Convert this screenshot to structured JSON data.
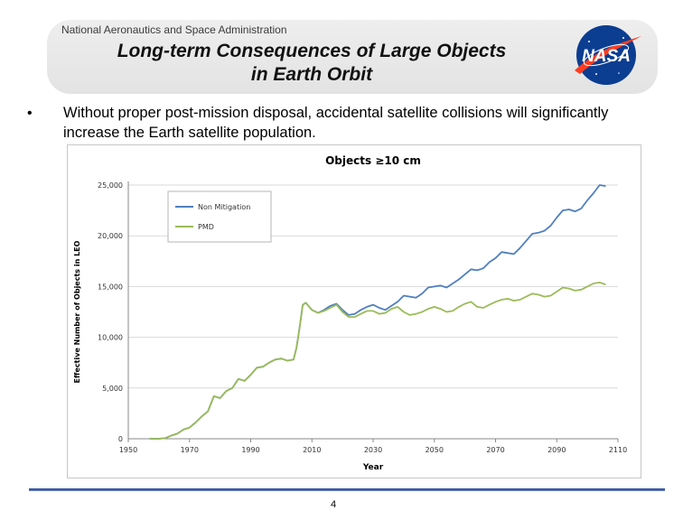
{
  "header": {
    "org_name": "National Aeronautics and Space Administration",
    "title_line1": "Long-term Consequences of Large Objects",
    "title_line2": "in Earth Orbit",
    "logo_text": "NASA"
  },
  "bullet": {
    "marker": "•",
    "text": "Without proper post-mission disposal, accidental satellite collisions will significantly increase the Earth satellite population."
  },
  "footer": {
    "page_number": "4"
  },
  "colors": {
    "non_mitigation": "#4f7fbf",
    "pmd": "#9bbb59",
    "nasa_blue": "#0b3d91",
    "nasa_red": "#fc3d21"
  },
  "chart_data": {
    "type": "line",
    "title": "Objects ≥10 cm",
    "xlabel": "Year",
    "ylabel": "Effective Number of Objects in LEO",
    "xlim": [
      1950,
      2110
    ],
    "ylim": [
      0,
      25000
    ],
    "xticks": [
      1950,
      1970,
      1990,
      2010,
      2030,
      2050,
      2070,
      2090,
      2110
    ],
    "yticks": [
      0,
      5000,
      10000,
      15000,
      20000,
      25000
    ],
    "ytick_labels": [
      "0",
      "5,000",
      "10,000",
      "15,000",
      "20,000",
      "25,000"
    ],
    "legend_position": "top-left",
    "series": [
      {
        "name": "Non Mitigation",
        "x": [
          1957,
          1960,
          1962,
          1964,
          1966,
          1968,
          1970,
          1972,
          1974,
          1976,
          1978,
          1980,
          1982,
          1984,
          1986,
          1988,
          1990,
          1992,
          1994,
          1996,
          1998,
          2000,
          2002,
          2004,
          2005,
          2006,
          2007,
          2008,
          2010,
          2012,
          2014,
          2016,
          2018,
          2020,
          2022,
          2024,
          2026,
          2028,
          2030,
          2032,
          2034,
          2036,
          2038,
          2040,
          2042,
          2044,
          2046,
          2048,
          2050,
          2052,
          2054,
          2056,
          2058,
          2060,
          2062,
          2064,
          2066,
          2068,
          2070,
          2072,
          2074,
          2076,
          2078,
          2080,
          2082,
          2084,
          2086,
          2088,
          2090,
          2092,
          2094,
          2096,
          2098,
          2100,
          2102,
          2104,
          2106
        ],
        "values": [
          0,
          0,
          50,
          300,
          500,
          900,
          1100,
          1600,
          2200,
          2700,
          4200,
          4000,
          4700,
          5000,
          5900,
          5700,
          6300,
          7000,
          7100,
          7500,
          7800,
          7900,
          7700,
          7800,
          9000,
          11000,
          13200,
          13400,
          12700,
          12400,
          12700,
          13100,
          13300,
          12700,
          12200,
          12300,
          12700,
          13000,
          13200,
          12900,
          12700,
          13100,
          13500,
          14100,
          14000,
          13900,
          14300,
          14900,
          15000,
          15100,
          14900,
          15300,
          15700,
          16200,
          16700,
          16600,
          16800,
          17400,
          17800,
          18400,
          18300,
          18200,
          18800,
          19500,
          20200,
          20300,
          20500,
          21000,
          21800,
          22500,
          22600,
          22400,
          22700,
          23500,
          24200,
          25000,
          24900
        ]
      },
      {
        "name": "PMD",
        "x": [
          1957,
          1960,
          1962,
          1964,
          1966,
          1968,
          1970,
          1972,
          1974,
          1976,
          1978,
          1980,
          1982,
          1984,
          1986,
          1988,
          1990,
          1992,
          1994,
          1996,
          1998,
          2000,
          2002,
          2004,
          2005,
          2006,
          2007,
          2008,
          2010,
          2012,
          2014,
          2016,
          2018,
          2020,
          2022,
          2024,
          2026,
          2028,
          2030,
          2032,
          2034,
          2036,
          2038,
          2040,
          2042,
          2044,
          2046,
          2048,
          2050,
          2052,
          2054,
          2056,
          2058,
          2060,
          2062,
          2064,
          2066,
          2068,
          2070,
          2072,
          2074,
          2076,
          2078,
          2080,
          2082,
          2084,
          2086,
          2088,
          2090,
          2092,
          2094,
          2096,
          2098,
          2100,
          2102,
          2104,
          2106
        ],
        "values": [
          0,
          0,
          50,
          300,
          500,
          900,
          1100,
          1600,
          2200,
          2700,
          4200,
          4000,
          4700,
          5000,
          5900,
          5700,
          6300,
          7000,
          7100,
          7500,
          7800,
          7900,
          7700,
          7800,
          9000,
          11000,
          13200,
          13400,
          12700,
          12400,
          12600,
          12900,
          13200,
          12500,
          12000,
          12000,
          12300,
          12600,
          12600,
          12300,
          12400,
          12800,
          13000,
          12500,
          12200,
          12300,
          12500,
          12800,
          13000,
          12800,
          12500,
          12600,
          13000,
          13300,
          13500,
          13000,
          12900,
          13200,
          13500,
          13700,
          13800,
          13600,
          13700,
          14000,
          14300,
          14200,
          14000,
          14100,
          14500,
          14900,
          14800,
          14600,
          14700,
          15000,
          15300,
          15400,
          15200
        ]
      }
    ]
  }
}
